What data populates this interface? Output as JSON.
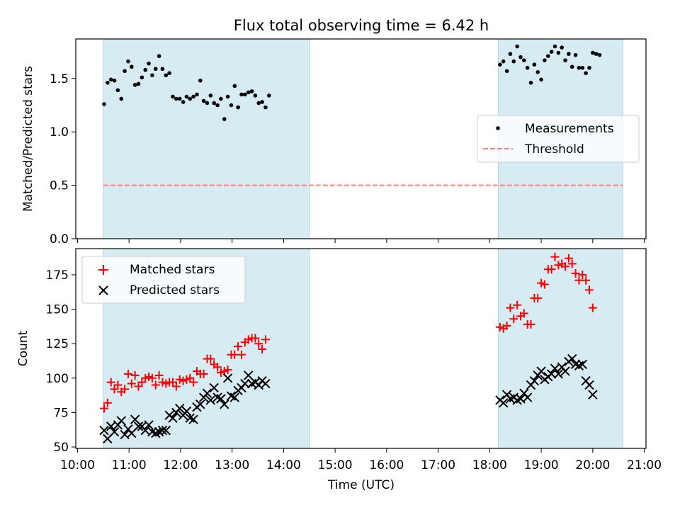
{
  "title": "Flux total observing time = 6.42 h",
  "colors": {
    "band": "#add8e6",
    "measure": "#000000",
    "threshold": "#ff7f7f",
    "matched": "#ff0000",
    "predicted": "#000000"
  },
  "chart_data": [
    {
      "type": "scatter",
      "ylabel": "Matched/Predicted stars",
      "ylim": [
        0,
        1.87
      ],
      "yticks": [
        "0.0",
        "0.5",
        "1.0",
        "1.5"
      ],
      "legend": {
        "position": "center-right",
        "entries": [
          "Measurements",
          "Threshold"
        ]
      },
      "observing_windows": [
        [
          "10:30",
          "14:30"
        ],
        [
          "18:10",
          "20:35"
        ]
      ],
      "threshold": {
        "value": 0.5,
        "x_range": [
          "10:30",
          "20:35"
        ]
      },
      "series": [
        {
          "name": "Measurements",
          "points": [
            [
              "10:31",
              1.26
            ],
            [
              "10:35",
              1.46
            ],
            [
              "10:39",
              1.49
            ],
            [
              "10:43",
              1.48
            ],
            [
              "10:47",
              1.39
            ],
            [
              "10:51",
              1.31
            ],
            [
              "10:55",
              1.57
            ],
            [
              "10:59",
              1.66
            ],
            [
              "11:03",
              1.61
            ],
            [
              "11:07",
              1.44
            ],
            [
              "11:11",
              1.45
            ],
            [
              "11:15",
              1.51
            ],
            [
              "11:19",
              1.58
            ],
            [
              "11:23",
              1.64
            ],
            [
              "11:27",
              1.53
            ],
            [
              "11:31",
              1.59
            ],
            [
              "11:35",
              1.71
            ],
            [
              "11:39",
              1.59
            ],
            [
              "11:43",
              1.53
            ],
            [
              "11:47",
              1.55
            ],
            [
              "11:51",
              1.33
            ],
            [
              "11:55",
              1.31
            ],
            [
              "11:59",
              1.31
            ],
            [
              "12:03",
              1.28
            ],
            [
              "12:07",
              1.33
            ],
            [
              "12:11",
              1.31
            ],
            [
              "12:15",
              1.33
            ],
            [
              "12:19",
              1.35
            ],
            [
              "12:23",
              1.48
            ],
            [
              "12:27",
              1.29
            ],
            [
              "12:31",
              1.27
            ],
            [
              "12:35",
              1.34
            ],
            [
              "12:39",
              1.27
            ],
            [
              "12:43",
              1.25
            ],
            [
              "12:47",
              1.31
            ],
            [
              "12:51",
              1.12
            ],
            [
              "12:55",
              1.33
            ],
            [
              "12:59",
              1.25
            ],
            [
              "13:03",
              1.43
            ],
            [
              "13:07",
              1.23
            ],
            [
              "13:11",
              1.35
            ],
            [
              "13:15",
              1.35
            ],
            [
              "13:19",
              1.37
            ],
            [
              "13:23",
              1.38
            ],
            [
              "13:27",
              1.34
            ],
            [
              "13:31",
              1.27
            ],
            [
              "13:35",
              1.28
            ],
            [
              "13:39",
              1.23
            ],
            [
              "13:43",
              1.34
            ],
            [
              "18:12",
              1.63
            ],
            [
              "18:16",
              1.66
            ],
            [
              "18:20",
              1.57
            ],
            [
              "18:24",
              1.73
            ],
            [
              "18:28",
              1.66
            ],
            [
              "18:32",
              1.8
            ],
            [
              "18:36",
              1.7
            ],
            [
              "18:40",
              1.67
            ],
            [
              "18:44",
              1.6
            ],
            [
              "18:48",
              1.46
            ],
            [
              "18:52",
              1.63
            ],
            [
              "18:56",
              1.56
            ],
            [
              "19:00",
              1.49
            ],
            [
              "19:04",
              1.67
            ],
            [
              "19:08",
              1.71
            ],
            [
              "19:12",
              1.75
            ],
            [
              "19:16",
              1.8
            ],
            [
              "19:20",
              1.74
            ],
            [
              "19:24",
              1.79
            ],
            [
              "19:28",
              1.67
            ],
            [
              "19:32",
              1.73
            ],
            [
              "19:36",
              1.61
            ],
            [
              "19:40",
              1.72
            ],
            [
              "19:44",
              1.6
            ],
            [
              "19:48",
              1.6
            ],
            [
              "19:52",
              1.55
            ],
            [
              "19:56",
              1.6
            ],
            [
              "20:00",
              1.74
            ],
            [
              "20:04",
              1.73
            ],
            [
              "20:08",
              1.72
            ]
          ]
        }
      ]
    },
    {
      "type": "scatter",
      "xlabel": "Time (UTC)",
      "ylabel": "Count",
      "ylim": [
        49,
        194
      ],
      "yticks": [
        "50",
        "75",
        "100",
        "125",
        "150",
        "175"
      ],
      "xticks": [
        "10:00",
        "11:00",
        "12:00",
        "13:00",
        "14:00",
        "15:00",
        "16:00",
        "17:00",
        "18:00",
        "19:00",
        "20:00",
        "21:00"
      ],
      "xlim": [
        "09:58",
        "21:02"
      ],
      "legend": {
        "position": "top-left",
        "entries": [
          "Matched stars",
          "Predicted stars"
        ]
      },
      "series": [
        {
          "name": "Matched stars",
          "points": [
            [
              "10:31",
              78
            ],
            [
              "10:35",
              82
            ],
            [
              "10:39",
              97
            ],
            [
              "10:43",
              92
            ],
            [
              "10:47",
              95
            ],
            [
              "10:51",
              90
            ],
            [
              "10:55",
              92
            ],
            [
              "10:59",
              103
            ],
            [
              "11:03",
              96
            ],
            [
              "11:07",
              102
            ],
            [
              "11:11",
              94
            ],
            [
              "11:15",
              97
            ],
            [
              "11:19",
              100
            ],
            [
              "11:23",
              101
            ],
            [
              "11:27",
              100
            ],
            [
              "11:31",
              95
            ],
            [
              "11:35",
              102
            ],
            [
              "11:39",
              97
            ],
            [
              "11:43",
              96
            ],
            [
              "11:47",
              97
            ],
            [
              "11:51",
              97
            ],
            [
              "11:55",
              94
            ],
            [
              "11:59",
              99
            ],
            [
              "12:03",
              98
            ],
            [
              "12:07",
              99
            ],
            [
              "12:11",
              100
            ],
            [
              "12:15",
              97
            ],
            [
              "12:19",
              105
            ],
            [
              "12:23",
              103
            ],
            [
              "12:27",
              103
            ],
            [
              "12:31",
              114
            ],
            [
              "12:35",
              114
            ],
            [
              "12:39",
              110
            ],
            [
              "12:43",
              108
            ],
            [
              "12:47",
              104
            ],
            [
              "12:51",
              105
            ],
            [
              "12:55",
              106
            ],
            [
              "12:59",
              117
            ],
            [
              "13:03",
              117
            ],
            [
              "13:07",
              123
            ],
            [
              "13:11",
              117
            ],
            [
              "13:15",
              126
            ],
            [
              "13:19",
              128
            ],
            [
              "13:23",
              129
            ],
            [
              "13:27",
              129
            ],
            [
              "13:31",
              125
            ],
            [
              "13:35",
              121
            ],
            [
              "13:39",
              128
            ],
            [
              "18:12",
              137
            ],
            [
              "18:16",
              136
            ],
            [
              "18:20",
              138
            ],
            [
              "18:24",
              151
            ],
            [
              "18:28",
              143
            ],
            [
              "18:32",
              153
            ],
            [
              "18:36",
              145
            ],
            [
              "18:40",
              147
            ],
            [
              "18:44",
              139
            ],
            [
              "18:48",
              139
            ],
            [
              "18:52",
              158
            ],
            [
              "18:56",
              158
            ],
            [
              "19:00",
              169
            ],
            [
              "19:04",
              168
            ],
            [
              "19:08",
              179
            ],
            [
              "19:12",
              179
            ],
            [
              "19:16",
              188
            ],
            [
              "19:20",
              182
            ],
            [
              "19:24",
              183
            ],
            [
              "19:28",
              181
            ],
            [
              "19:32",
              187
            ],
            [
              "19:36",
              183
            ],
            [
              "19:40",
              176
            ],
            [
              "19:44",
              171
            ],
            [
              "19:48",
              175
            ],
            [
              "19:52",
              171
            ],
            [
              "19:56",
              164
            ],
            [
              "20:00",
              151
            ]
          ]
        },
        {
          "name": "Predicted stars",
          "points": [
            [
              "10:31",
              62
            ],
            [
              "10:35",
              56
            ],
            [
              "10:39",
              65
            ],
            [
              "10:43",
              61
            ],
            [
              "10:47",
              66
            ],
            [
              "10:51",
              69
            ],
            [
              "10:55",
              59
            ],
            [
              "10:59",
              63
            ],
            [
              "11:03",
              60
            ],
            [
              "11:07",
              70
            ],
            [
              "11:11",
              65
            ],
            [
              "11:15",
              65
            ],
            [
              "11:19",
              62
            ],
            [
              "11:23",
              66
            ],
            [
              "11:27",
              61
            ],
            [
              "11:31",
              60
            ],
            [
              "11:35",
              61
            ],
            [
              "11:39",
              62
            ],
            [
              "11:43",
              62
            ],
            [
              "11:47",
              73
            ],
            [
              "11:51",
              71
            ],
            [
              "11:55",
              75
            ],
            [
              "11:59",
              78
            ],
            [
              "12:03",
              73
            ],
            [
              "12:07",
              76
            ],
            [
              "12:11",
              71
            ],
            [
              "12:15",
              70
            ],
            [
              "12:19",
              79
            ],
            [
              "12:23",
              81
            ],
            [
              "12:27",
              86
            ],
            [
              "12:31",
              89
            ],
            [
              "12:35",
              84
            ],
            [
              "12:39",
              93
            ],
            [
              "12:43",
              86
            ],
            [
              "12:47",
              85
            ],
            [
              "12:51",
              81
            ],
            [
              "12:55",
              100
            ],
            [
              "12:59",
              87
            ],
            [
              "13:03",
              86
            ],
            [
              "13:07",
              91
            ],
            [
              "13:11",
              93
            ],
            [
              "13:15",
              96
            ],
            [
              "13:19",
              102
            ],
            [
              "13:23",
              96
            ],
            [
              "13:27",
              97
            ],
            [
              "13:31",
              95
            ],
            [
              "13:35",
              98
            ],
            [
              "13:39",
              96
            ],
            [
              "18:12",
              84
            ],
            [
              "18:16",
              82
            ],
            [
              "18:20",
              88
            ],
            [
              "18:24",
              85
            ],
            [
              "18:28",
              86
            ],
            [
              "18:32",
              84
            ],
            [
              "18:36",
              85
            ],
            [
              "18:40",
              89
            ],
            [
              "18:44",
              86
            ],
            [
              "18:48",
              95
            ],
            [
              "18:52",
              98
            ],
            [
              "18:56",
              102
            ],
            [
              "19:00",
              105
            ],
            [
              "19:04",
              99
            ],
            [
              "19:08",
              101
            ],
            [
              "19:12",
              103
            ],
            [
              "19:16",
              107
            ],
            [
              "19:20",
              103
            ],
            [
              "19:24",
              108
            ],
            [
              "19:28",
              105
            ],
            [
              "19:32",
              112
            ],
            [
              "19:36",
              114
            ],
            [
              "19:40",
              110
            ],
            [
              "19:44",
              109
            ],
            [
              "19:48",
              110
            ],
            [
              "19:52",
              98
            ],
            [
              "19:56",
              95
            ],
            [
              "20:00",
              88
            ]
          ]
        }
      ]
    }
  ]
}
